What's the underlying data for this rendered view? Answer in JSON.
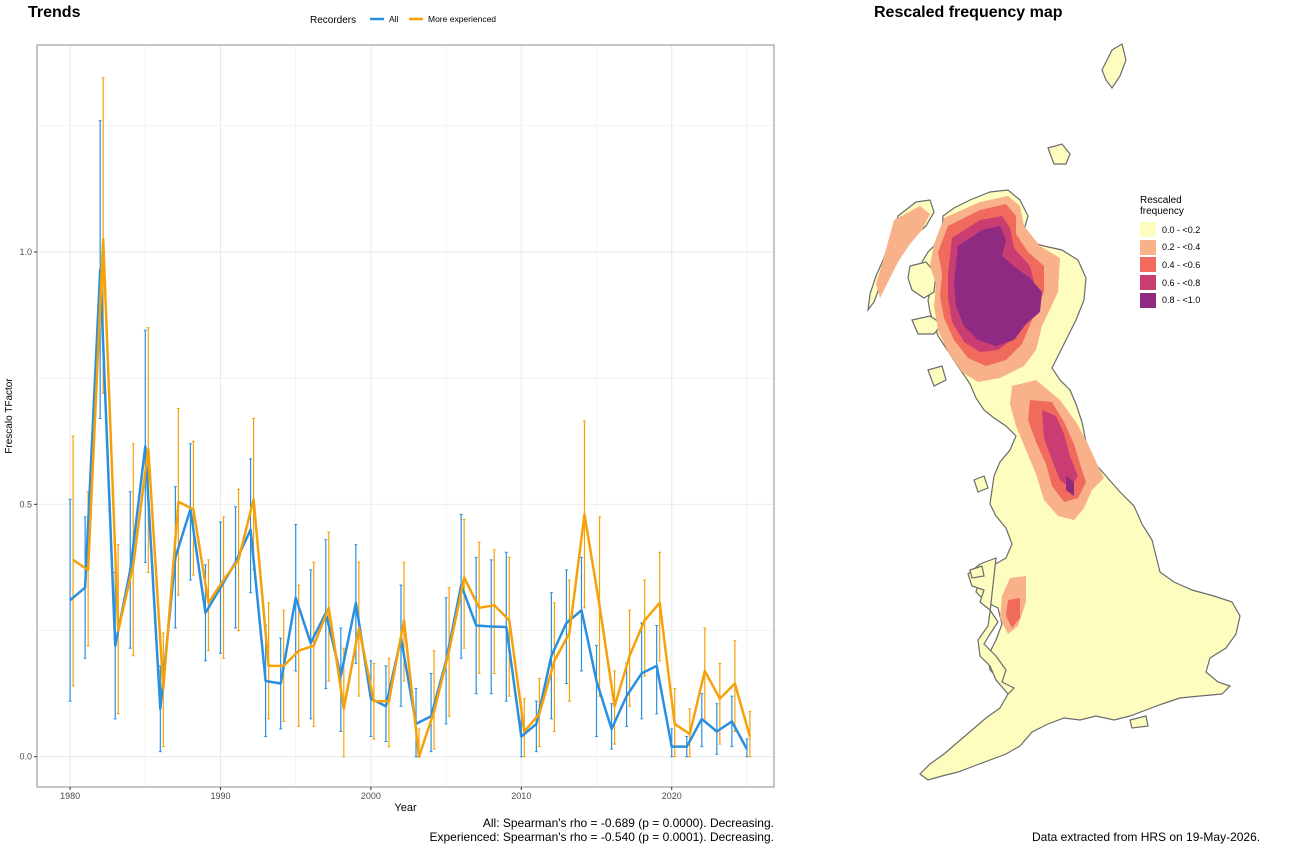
{
  "trends_title": "Trends",
  "map_title": "Rescaled frequency map",
  "stats": {
    "all": "All: Spearman's rho = -0.689 (p = 0.0000). Decreasing.",
    "experienced": "Experienced: Spearman's rho = -0.540 (p = 0.0001). Decreasing."
  },
  "source_note": "Data extracted from HRS on 19-May-2026.",
  "colors": {
    "all": "#2b8fe0",
    "experienced": "#f5a20a",
    "grid": "#ebebeb",
    "panel_border": "#8c8c8c"
  },
  "chart_data": {
    "type": "line",
    "xlabel": "Year",
    "ylabel": "Frescalo TFactor",
    "xlim": [
      1977.8,
      2026.8
    ],
    "ylim": [
      -0.06,
      1.41
    ],
    "x_ticks": [
      1980,
      1990,
      2000,
      2010,
      2020
    ],
    "y_ticks": [
      0.0,
      0.5,
      1.0
    ],
    "y_tick_labels": [
      "0.0",
      "0.5",
      "1.0"
    ],
    "grid": true,
    "legend": {
      "title": "Recorders",
      "position": "top",
      "entries": [
        "All",
        "More experienced"
      ]
    },
    "series": [
      {
        "name": "All",
        "color": "#2b8fe0",
        "x": [
          1980,
          1981,
          1982,
          1983,
          1984,
          1985,
          1986,
          1987,
          1988,
          1989,
          1990,
          1991,
          1992,
          1993,
          1994,
          1995,
          1996,
          1997,
          1998,
          1999,
          2000,
          2001,
          2002,
          2003,
          2004,
          2005,
          2006,
          2007,
          2008,
          2009,
          2010,
          2011,
          2012,
          2013,
          2014,
          2015,
          2016,
          2017,
          2018,
          2019,
          2020,
          2021,
          2022,
          2023,
          2024,
          2025
        ],
        "y": [
          0.31,
          0.335,
          0.965,
          0.22,
          0.37,
          0.615,
          0.095,
          0.395,
          0.49,
          0.285,
          0.335,
          0.385,
          0.45,
          0.15,
          0.145,
          0.315,
          0.225,
          0.285,
          0.16,
          0.305,
          0.115,
          0.1,
          0.235,
          0.065,
          0.08,
          0.19,
          0.34,
          0.26,
          0.258,
          0.257,
          0.04,
          0.065,
          0.2,
          0.265,
          0.29,
          0.15,
          0.055,
          0.12,
          0.165,
          0.18,
          0.02,
          0.02,
          0.075,
          0.05,
          0.07,
          0.015
        ],
        "lower": [
          0.11,
          0.195,
          0.67,
          0.075,
          0.215,
          0.385,
          0.01,
          0.255,
          0.35,
          0.19,
          0.205,
          0.255,
          0.325,
          0.04,
          0.055,
          0.17,
          0.075,
          0.135,
          0.05,
          0.185,
          0.04,
          0.03,
          0.1,
          0.0,
          0.01,
          0.065,
          0.195,
          0.125,
          0.125,
          0.11,
          0.0,
          0.01,
          0.075,
          0.145,
          0.17,
          0.04,
          0.015,
          0.06,
          0.075,
          0.085,
          0.0,
          0.0,
          0.02,
          0.005,
          0.02,
          0.0
        ],
        "upper": [
          0.51,
          0.475,
          1.26,
          0.365,
          0.525,
          0.845,
          0.18,
          0.535,
          0.62,
          0.38,
          0.465,
          0.495,
          0.59,
          0.26,
          0.235,
          0.46,
          0.37,
          0.43,
          0.255,
          0.42,
          0.19,
          0.18,
          0.34,
          0.135,
          0.165,
          0.315,
          0.48,
          0.395,
          0.39,
          0.405,
          0.095,
          0.11,
          0.325,
          0.37,
          0.395,
          0.22,
          0.105,
          0.185,
          0.265,
          0.26,
          0.055,
          0.04,
          0.125,
          0.105,
          0.12,
          0.035
        ]
      },
      {
        "name": "More experienced",
        "color": "#f5a20a",
        "x": [
          1980,
          1981,
          1982,
          1983,
          1984,
          1985,
          1986,
          1987,
          1988,
          1989,
          1990,
          1991,
          1992,
          1993,
          1994,
          1995,
          1996,
          1997,
          1998,
          1999,
          2000,
          2001,
          2002,
          2003,
          2004,
          2005,
          2006,
          2007,
          2008,
          2009,
          2010,
          2011,
          2012,
          2013,
          2014,
          2015,
          2016,
          2017,
          2018,
          2019,
          2020,
          2021,
          2022,
          2023,
          2024,
          2025
        ],
        "y": [
          0.39,
          0.37,
          1.025,
          0.25,
          0.38,
          0.61,
          0.135,
          0.505,
          0.49,
          0.305,
          0.35,
          0.39,
          0.51,
          0.18,
          0.18,
          0.21,
          0.22,
          0.295,
          0.095,
          0.255,
          0.11,
          0.11,
          0.27,
          0.0,
          0.09,
          0.21,
          0.355,
          0.295,
          0.3,
          0.27,
          0.05,
          0.085,
          0.19,
          0.245,
          0.48,
          0.3,
          0.1,
          0.2,
          0.27,
          0.305,
          0.065,
          0.045,
          0.17,
          0.115,
          0.145,
          0.04
        ],
        "lower": [
          0.14,
          0.22,
          0.72,
          0.085,
          0.2,
          0.365,
          0.02,
          0.32,
          0.36,
          0.21,
          0.195,
          0.25,
          0.37,
          0.075,
          0.07,
          0.06,
          0.06,
          0.15,
          0.0,
          0.12,
          0.035,
          0.02,
          0.15,
          0.0,
          0.015,
          0.08,
          0.215,
          0.165,
          0.165,
          0.12,
          0.0,
          0.02,
          0.05,
          0.11,
          0.295,
          0.12,
          0.025,
          0.1,
          0.16,
          0.19,
          0.0,
          0.0,
          0.07,
          0.025,
          0.05,
          0.0
        ],
        "upper": [
          0.635,
          0.525,
          1.345,
          0.42,
          0.62,
          0.85,
          0.245,
          0.69,
          0.625,
          0.39,
          0.475,
          0.53,
          0.67,
          0.305,
          0.29,
          0.34,
          0.385,
          0.445,
          0.215,
          0.385,
          0.185,
          0.195,
          0.385,
          0.055,
          0.21,
          0.335,
          0.47,
          0.425,
          0.41,
          0.395,
          0.115,
          0.155,
          0.305,
          0.35,
          0.665,
          0.475,
          0.17,
          0.29,
          0.35,
          0.405,
          0.135,
          0.095,
          0.255,
          0.185,
          0.23,
          0.09
        ]
      }
    ]
  },
  "map": {
    "legend_title": "Rescaled\nfrequency",
    "legend": [
      {
        "label": "0.0 - <0.2",
        "color": "#fdfdc0"
      },
      {
        "label": "0.2 - <0.4",
        "color": "#f9b18a"
      },
      {
        "label": "0.4 - <0.6",
        "color": "#f06b5e"
      },
      {
        "label": "0.6 - <0.8",
        "color": "#c93d72"
      },
      {
        "label": "0.8 - <1.0",
        "color": "#8e2a82"
      }
    ]
  }
}
